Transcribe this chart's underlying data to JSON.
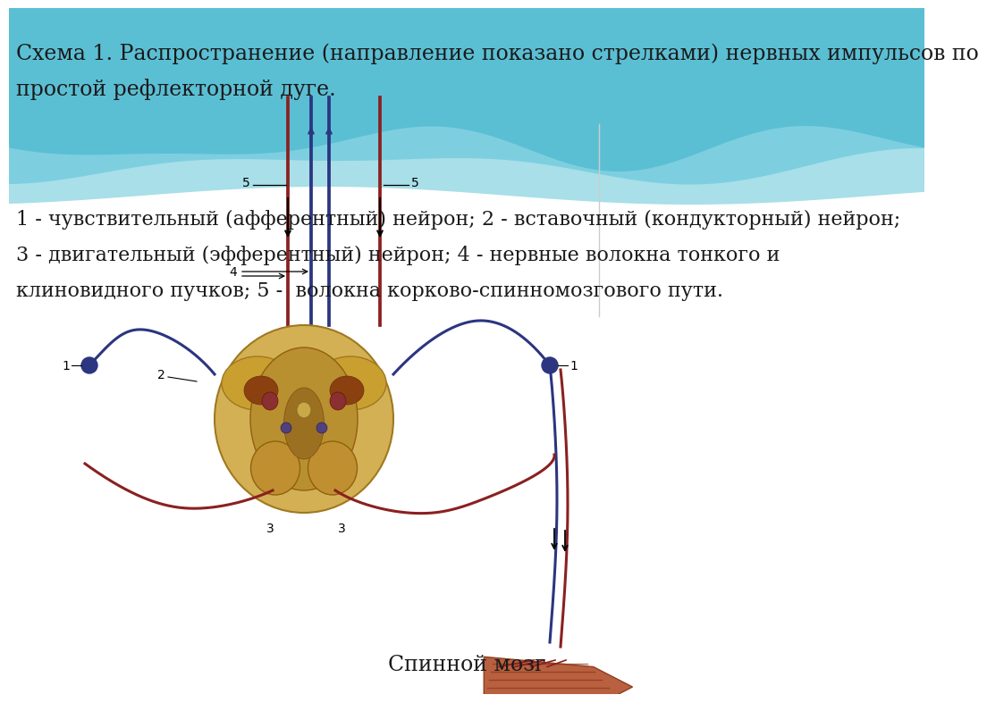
{
  "title_line1": "Схема 1. Распространение (направление показано стрелками) нервных импульсов по",
  "title_line2": "простой рефлекторной дуге.",
  "legend_line1": "1 - чувствительный (афферентный) нейрон; 2 - вставочный (кондукторный) нейрон;",
  "legend_line2": "3 - двигательный (эфферентный) нейрон; 4 - нервные волокна тонкого и",
  "legend_line3": "клиновидного пучков; 5 -  волокна корково-спинномозгового пути.",
  "caption": "Спинной мозг",
  "text_color": "#1a1a1a",
  "title_fontsize": 17,
  "legend_fontsize": 16,
  "caption_fontsize": 17,
  "red_color": "#8B2020",
  "blue_dark": "#2B3580",
  "nerve_lw": 2.2
}
